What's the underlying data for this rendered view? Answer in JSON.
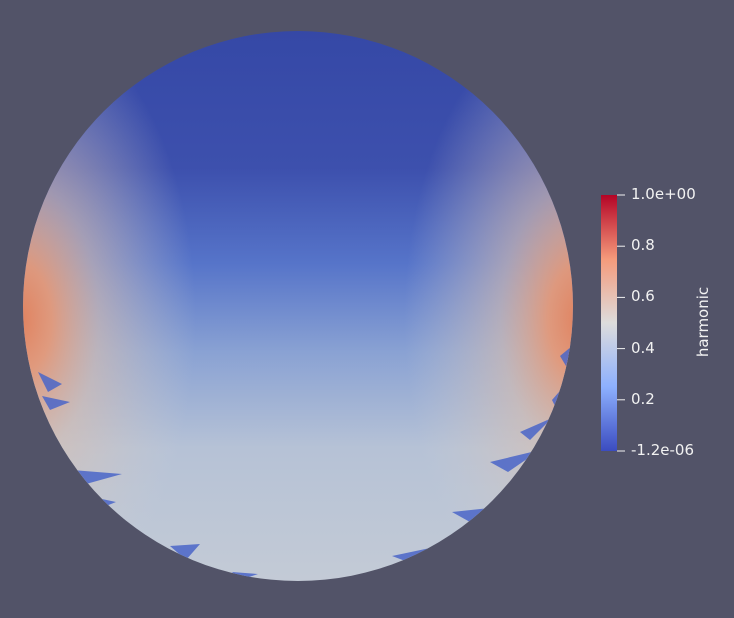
{
  "colors": {
    "background": "#525368",
    "colormap_low": "#3b4cc0",
    "colormap_mid": "#dddcdc",
    "colormap_high": "#b40426"
  },
  "colorbar": {
    "title": "harmonic",
    "ticks": [
      {
        "value": 1.0,
        "label": "1.0e+00"
      },
      {
        "value": 0.8,
        "label": "0.8"
      },
      {
        "value": 0.6,
        "label": "0.6"
      },
      {
        "value": 0.4,
        "label": "0.4"
      },
      {
        "value": 0.2,
        "label": "0.2"
      },
      {
        "value": 0.0,
        "label": "-1.2e-06"
      }
    ]
  }
}
